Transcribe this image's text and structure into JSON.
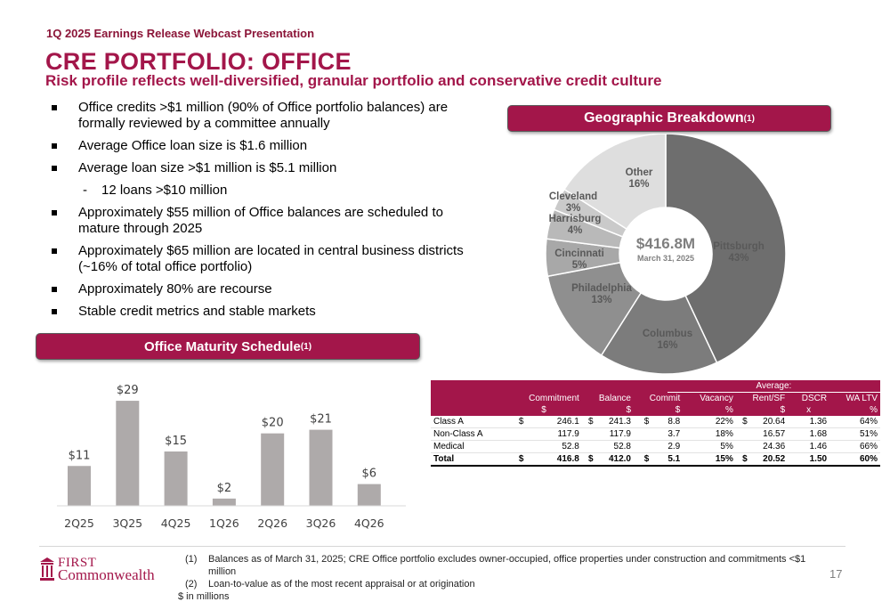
{
  "header": {
    "kicker": "1Q 2025 Earnings Release Webcast Presentation",
    "title": "CRE PORTFOLIO:  OFFICE",
    "subtitle": "Risk profile reflects well-diversified, granular portfolio and conservative credit culture"
  },
  "bullets": [
    {
      "text": "Office credits >$1 million (90% of Office portfolio balances) are formally reviewed by a committee annually",
      "level": 1
    },
    {
      "text": "Average Office loan size is $1.6 million",
      "level": 1
    },
    {
      "text": "Average loan size >$1 million is $5.1 million",
      "level": 1
    },
    {
      "text": "12 loans >$10 million",
      "level": 2
    },
    {
      "text": "Approximately $55 million of Office balances are scheduled to mature through 2025",
      "level": 1
    },
    {
      "text": "Approximately $65 million are located in central business districts (~16% of total office portfolio)",
      "level": 1
    },
    {
      "text": "Approximately 80% are recourse",
      "level": 1
    },
    {
      "text": "Stable credit metrics and stable markets",
      "level": 1
    }
  ],
  "geo_section": {
    "title": "Geographic Breakdown",
    "footnote_ref": "(1)"
  },
  "maturity_section": {
    "title": "Office Maturity Schedule",
    "footnote_ref": "(1)"
  },
  "chart_data": [
    {
      "type": "pie",
      "style": "donut",
      "center_value": "$416.8M",
      "center_label": "March 31, 2025",
      "slices": [
        {
          "label": "Pittsburgh",
          "value": 43,
          "display": "43%",
          "color": "#6e6e6e"
        },
        {
          "label": "Columbus",
          "value": 16,
          "display": "16%",
          "color": "#7c7c7c"
        },
        {
          "label": "Philadelphia",
          "value": 13,
          "display": "13%",
          "color": "#8f8f8f"
        },
        {
          "label": "Cincinnati",
          "value": 5,
          "display": "5%",
          "color": "#a8a8a8"
        },
        {
          "label": "Harrisburg",
          "value": 4,
          "display": "4%",
          "color": "#b9b9b9"
        },
        {
          "label": "Cleveland",
          "value": 3,
          "display": "3%",
          "color": "#cacaca"
        },
        {
          "label": "Other",
          "value": 16,
          "display": "16%",
          "color": "#dedede"
        }
      ]
    },
    {
      "type": "bar",
      "categories": [
        "2Q25",
        "3Q25",
        "4Q25",
        "1Q26",
        "2Q26",
        "3Q26",
        "4Q26"
      ],
      "values": [
        11,
        29,
        15,
        2,
        20,
        21,
        6
      ],
      "value_labels": [
        "$11",
        "$29",
        "$15",
        "$2",
        "$20",
        "$21",
        "$6"
      ],
      "ylim": [
        0,
        30
      ],
      "bar_color": "#aeaaaa",
      "grid": false
    }
  ],
  "metrics_table": {
    "average_label": "Average:",
    "headers": [
      "Commitment",
      "Balance",
      "Commit",
      "Vacancy",
      "Rent/SF",
      "DSCR",
      "WA LTV"
    ],
    "units": [
      "$",
      "$",
      "$",
      "%",
      "$",
      "x",
      "%"
    ],
    "rows": [
      {
        "label": "Class A",
        "c_sym": "$",
        "commitment": "246.1",
        "b_sym": "$",
        "balance": "241.3",
        "a_sym": "$",
        "commit": "8.8",
        "vacancy": "22%",
        "r_sym": "$",
        "rent": "20.64",
        "dscr": "1.36",
        "ltv": "64%"
      },
      {
        "label": "Non-Class A",
        "c_sym": "",
        "commitment": "117.9",
        "b_sym": "",
        "balance": "117.9",
        "a_sym": "",
        "commit": "3.7",
        "vacancy": "18%",
        "r_sym": "",
        "rent": "16.57",
        "dscr": "1.68",
        "ltv": "51%"
      },
      {
        "label": "Medical",
        "c_sym": "",
        "commitment": "52.8",
        "b_sym": "",
        "balance": "52.8",
        "a_sym": "",
        "commit": "2.9",
        "vacancy": "5%",
        "r_sym": "",
        "rent": "24.36",
        "dscr": "1.46",
        "ltv": "66%"
      }
    ],
    "total": {
      "label": "Total",
      "c_sym": "$",
      "commitment": "416.8",
      "b_sym": "$",
      "balance": "412.0",
      "a_sym": "$",
      "commit": "5.1",
      "vacancy": "15%",
      "r_sym": "$",
      "rent": "20.52",
      "dscr": "1.50",
      "ltv": "60%"
    }
  },
  "footnotes": [
    {
      "num": "(1)",
      "text": "Balances as of March 31, 2025; CRE Office portfolio excludes owner-occupied, office properties under construction and commitments <$1 million"
    },
    {
      "num": "(2)",
      "text": "Loan-to-value as of the most recent appraisal or at origination"
    }
  ],
  "unit_note": "$ in millions",
  "logo": {
    "line1": "FIRST",
    "line2": "Commonwealth",
    "icon": "bank-building-icon"
  },
  "page_number": "17",
  "colors": {
    "brand": "#a3164a",
    "kicker": "#8b1538"
  }
}
